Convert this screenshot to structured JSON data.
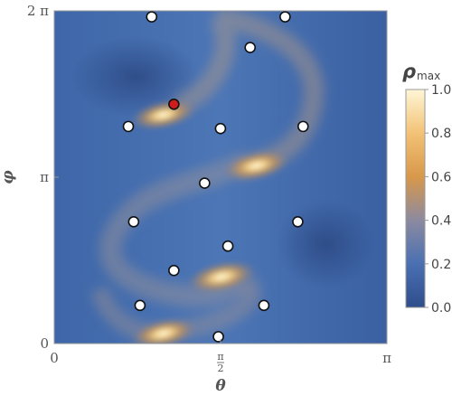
{
  "chart_data": {
    "type": "heatmap",
    "xlabel": "θ",
    "ylabel": "φ",
    "xlim": [
      0,
      3.14159
    ],
    "ylim": [
      0,
      6.28319
    ],
    "x_ticks": [
      {
        "value": 0,
        "label": "0"
      },
      {
        "value": 1.5708,
        "label_num": "π",
        "label_den": "2"
      },
      {
        "value": 3.14159,
        "label": "π"
      }
    ],
    "y_ticks": [
      {
        "value": 0,
        "label": "0"
      },
      {
        "value": 3.14159,
        "label": "π"
      },
      {
        "value": 6.28319,
        "label": "2 π"
      }
    ],
    "colorbar": {
      "title_main": "ρ",
      "title_sub": "max",
      "range": [
        0,
        1
      ],
      "ticks": [
        {
          "value": 0.0,
          "label": "0.0"
        },
        {
          "value": 0.2,
          "label": "0.2"
        },
        {
          "value": 0.4,
          "label": "0.4"
        },
        {
          "value": 0.6,
          "label": "0.6"
        },
        {
          "value": 0.8,
          "label": "0.8"
        },
        {
          "value": 1.0,
          "label": "1.0"
        }
      ],
      "colors": [
        "#2f4d8c",
        "#4a70b2",
        "#8c8aa0",
        "#d8984a",
        "#f2c276",
        "#fff6d6"
      ]
    },
    "hotspots": [
      {
        "theta": 1.03,
        "phi": 0.19,
        "value": 0.9
      },
      {
        "theta": 1.58,
        "phi": 1.26,
        "value": 0.95
      },
      {
        "theta": 1.91,
        "phi": 3.36,
        "value": 0.9
      },
      {
        "theta": 1.03,
        "phi": 4.32,
        "value": 0.9
      }
    ],
    "points": [
      {
        "theta": 0.92,
        "phi": 6.17,
        "highlight": false
      },
      {
        "theta": 2.18,
        "phi": 6.17,
        "highlight": false
      },
      {
        "theta": 1.85,
        "phi": 5.59,
        "highlight": false
      },
      {
        "theta": 1.13,
        "phi": 4.52,
        "highlight": true
      },
      {
        "theta": 0.7,
        "phi": 4.1,
        "highlight": false
      },
      {
        "theta": 1.57,
        "phi": 4.06,
        "highlight": false
      },
      {
        "theta": 2.35,
        "phi": 4.1,
        "highlight": false
      },
      {
        "theta": 1.42,
        "phi": 3.03,
        "highlight": false
      },
      {
        "theta": 0.75,
        "phi": 2.3,
        "highlight": false
      },
      {
        "theta": 2.3,
        "phi": 2.3,
        "highlight": false
      },
      {
        "theta": 1.64,
        "phi": 1.84,
        "highlight": false
      },
      {
        "theta": 1.13,
        "phi": 1.38,
        "highlight": false
      },
      {
        "theta": 0.81,
        "phi": 0.72,
        "highlight": false
      },
      {
        "theta": 1.98,
        "phi": 0.72,
        "highlight": false
      },
      {
        "theta": 1.55,
        "phi": 0.13,
        "highlight": false
      }
    ],
    "colors": {
      "point_fill": "#ffffff",
      "point_highlight": "#d01c1c",
      "point_stroke": "#111111",
      "frame": "#9a9a9a"
    }
  }
}
